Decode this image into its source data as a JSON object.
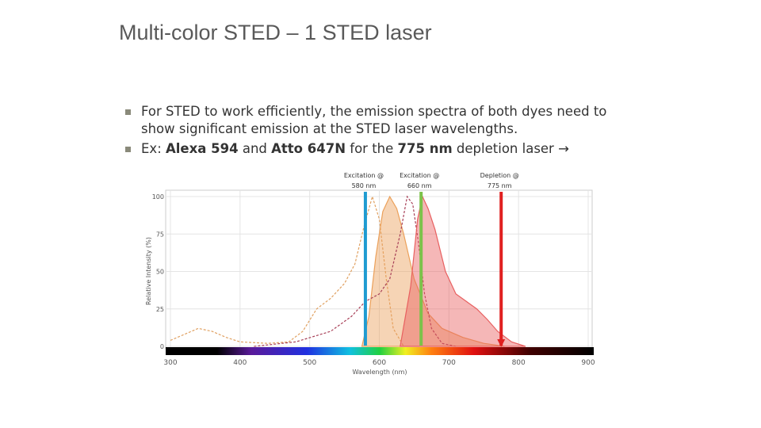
{
  "title": "Multi-color STED – 1 STED laser",
  "bullets": [
    {
      "parts": [
        {
          "text": "For STED to work efficiently, the emission spectra of both dyes need to show significant emission at the STED laser wavelengths.",
          "bold": false
        }
      ]
    },
    {
      "parts": [
        {
          "text": "Ex: ",
          "bold": false
        },
        {
          "text": "Alexa 594",
          "bold": true
        },
        {
          "text": " and ",
          "bold": false
        },
        {
          "text": "Atto 647N",
          "bold": true
        },
        {
          "text": " for the ",
          "bold": false
        },
        {
          "text": "775 nm",
          "bold": true
        },
        {
          "text": " depletion laser →",
          "bold": false
        }
      ]
    }
  ],
  "figure": {
    "type": "area",
    "xlabel": "Wavelength (nm)",
    "ylabel": "Relative Intensity (%)",
    "xlim": [
      300,
      900
    ],
    "ylim": [
      0,
      100
    ],
    "xticks": [
      300,
      400,
      500,
      600,
      700,
      800,
      900
    ],
    "yticks": [
      0,
      25,
      50,
      75,
      100
    ],
    "grid": true,
    "lasers": [
      {
        "line1": "Excitation @",
        "line2": "580 nm",
        "wavelength": 580,
        "color": "#1f9bd1"
      },
      {
        "line1": "Excitation @",
        "line2": "660 nm",
        "wavelength": 660,
        "color": "#7cc24a"
      },
      {
        "line1": "Depletion @",
        "line2": "775 nm",
        "wavelength": 775,
        "color": "#e02020"
      }
    ],
    "series": [
      {
        "style": "dashed",
        "color": "#e0a060",
        "x": [
          300,
          320,
          340,
          360,
          380,
          400,
          440,
          470,
          490,
          510,
          530,
          550,
          565,
          578,
          590,
          600,
          610,
          620,
          635
        ],
        "values": [
          4,
          8,
          12,
          10,
          6,
          3,
          2,
          3,
          10,
          25,
          32,
          42,
          55,
          80,
          100,
          85,
          45,
          12,
          0
        ]
      },
      {
        "style": "filled",
        "color": "#eba05a",
        "x": [
          575,
          585,
          595,
          605,
          615,
          625,
          635,
          650,
          670,
          690,
          720,
          750,
          780
        ],
        "values": [
          0,
          20,
          60,
          90,
          100,
          92,
          75,
          45,
          22,
          12,
          6,
          2,
          0
        ]
      },
      {
        "style": "dashed",
        "color": "#a84058",
        "x": [
          420,
          480,
          530,
          560,
          580,
          600,
          615,
          630,
          640,
          648,
          656,
          665,
          675,
          690,
          710
        ],
        "values": [
          0,
          3,
          10,
          20,
          30,
          35,
          45,
          75,
          100,
          95,
          70,
          35,
          12,
          2,
          0
        ]
      },
      {
        "style": "filled",
        "color": "#e86060",
        "x": [
          630,
          645,
          655,
          662,
          670,
          680,
          695,
          710,
          725,
          740,
          755,
          770,
          790,
          810
        ],
        "values": [
          0,
          40,
          85,
          100,
          92,
          78,
          50,
          35,
          30,
          25,
          18,
          10,
          3,
          0
        ]
      }
    ]
  }
}
